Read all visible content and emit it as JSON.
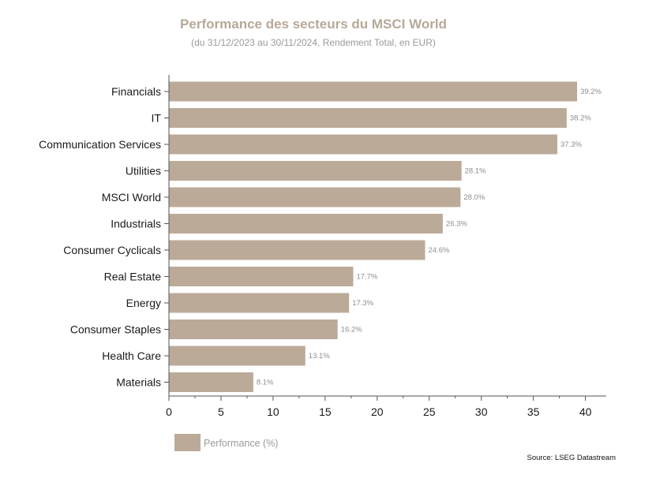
{
  "chart_data": {
    "type": "bar",
    "orientation": "horizontal",
    "title": "Performance des secteurs du MSCI World",
    "subtitle": "(du 31/12/2023 au 30/11/2024, Rendement Total, en EUR)",
    "categories": [
      "Financials",
      "IT",
      "Communication Services",
      "Utilities",
      "MSCI World",
      "Industrials",
      "Consumer Cyclicals",
      "Real Estate",
      "Energy",
      "Consumer Staples",
      "Health Care",
      "Materials"
    ],
    "series": [
      {
        "name": "Performance (%)",
        "values": [
          39.2,
          38.2,
          37.3,
          28.1,
          28.0,
          26.3,
          24.6,
          17.7,
          17.3,
          16.2,
          13.1,
          8.1
        ],
        "data_labels": [
          "39.2%",
          "38.2%",
          "37.3%",
          "28.1%",
          "28.0%",
          "26.3%",
          "24.6%",
          "17.7%",
          "17.3%",
          "16.2%",
          "13.1%",
          "8.1%"
        ],
        "color": "#bcaa99"
      }
    ],
    "xlim": [
      0,
      42
    ],
    "xticks": [
      0,
      5,
      10,
      15,
      20,
      25,
      30,
      35,
      40
    ],
    "grid": false,
    "legend_position": "bottom-left",
    "source": "Source: LSEG Datastream"
  }
}
